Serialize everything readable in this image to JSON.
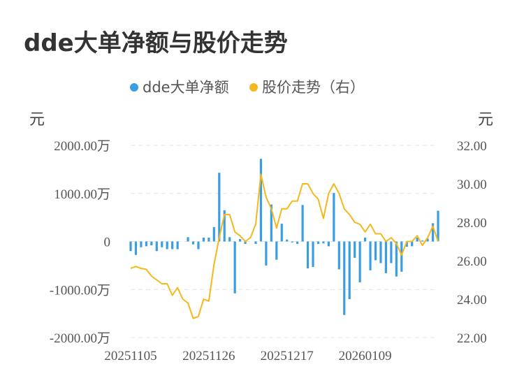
{
  "title": "dde大单净额与股价走势",
  "legend": [
    {
      "label": "dde大单净额",
      "color": "#3a9ee4"
    },
    {
      "label": "股价走势（右）",
      "color": "#f5b81c"
    }
  ],
  "left_unit": "元",
  "right_unit": "元",
  "chart_data": {
    "type": "bar+line",
    "x_tick_labels": [
      "20251105",
      "20251126",
      "20251217",
      "20260109"
    ],
    "x_tick_index": [
      0,
      15,
      30,
      45
    ],
    "y_left_tick_labels": [
      "2000.00万",
      "1000.00万",
      "0",
      "-1000.00万",
      "-2000.00万"
    ],
    "y_left_ticks": [
      2000,
      1000,
      0,
      -1000,
      -2000
    ],
    "y_left_lim": [
      -2000,
      2000
    ],
    "y_right_tick_labels": [
      "32.00",
      "30.00",
      "28.00",
      "26.00",
      "24.00",
      "22.00"
    ],
    "y_right_ticks": [
      32,
      30,
      28,
      26,
      24,
      22
    ],
    "y_right_lim": [
      22,
      32
    ],
    "grid": true,
    "legend_position": "top-center",
    "series": [
      {
        "name": "dde大单净额",
        "type": "bar",
        "axis": "left",
        "color": "#3a9ee4",
        "values": [
          -200,
          -280,
          -120,
          -100,
          -80,
          -200,
          -120,
          -160,
          -160,
          -160,
          0,
          90,
          -60,
          -160,
          80,
          80,
          300,
          1430,
          650,
          90,
          -1080,
          50,
          -50,
          0,
          -50,
          1720,
          -500,
          770,
          -380,
          370,
          40,
          -20,
          -50,
          760,
          -560,
          -530,
          -50,
          -40,
          -100,
          1010,
          -580,
          -1530,
          -1200,
          -340,
          -850,
          80,
          -600,
          -390,
          -450,
          -660,
          -450,
          -730,
          -630,
          -110,
          -100,
          80,
          20,
          60,
          380,
          640
        ]
      },
      {
        "name": "股价走势（右）",
        "type": "line",
        "axis": "right",
        "color": "#f5b81c",
        "values": [
          25.6,
          25.7,
          25.6,
          25.55,
          25.2,
          25.0,
          24.8,
          24.8,
          24.2,
          24.6,
          24.0,
          23.8,
          23.0,
          23.1,
          24.0,
          23.9,
          25.8,
          27.2,
          28.4,
          28.4,
          27.5,
          27.3,
          27.0,
          27.2,
          27.9,
          30.5,
          29.3,
          28.7,
          27.7,
          28.7,
          28.7,
          29.1,
          29.1,
          30.0,
          30.0,
          29.5,
          29.2,
          28.2,
          29.5,
          30.0,
          29.5,
          28.7,
          28.4,
          28.0,
          27.9,
          27.5,
          27.9,
          27.4,
          27.4,
          27.0,
          27.2,
          26.9,
          26.3,
          27.0,
          27.0,
          27.3,
          26.8,
          27.2,
          27.8,
          27.0
        ]
      }
    ]
  }
}
